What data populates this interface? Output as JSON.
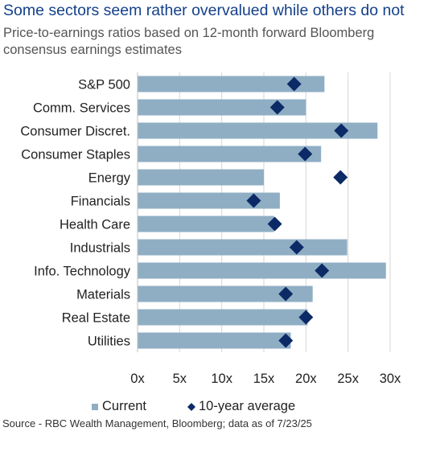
{
  "title": "Some sectors seem rather overvalued while others do not",
  "subtitle": "Price-to-earnings ratios based on 12-month forward Bloomberg consensus earnings estimates",
  "source": "Source - RBC Wealth Management, Bloomberg; data as of 7/23/25",
  "colors": {
    "bar": "#8faec4",
    "marker": "#0c2a66",
    "grid": "#d6d6d6",
    "title": "#14408a"
  },
  "chart_data": {
    "type": "bar",
    "orientation": "horizontal",
    "categories": [
      "S&P 500",
      "Comm. Services",
      "Consumer Discret.",
      "Consumer Staples",
      "Energy",
      "Financials",
      "Health Care",
      "Industrials",
      "Info. Technology",
      "Materials",
      "Real Estate",
      "Utilities"
    ],
    "series": [
      {
        "name": "Current",
        "type": "bar",
        "values": [
          22.2,
          20.0,
          28.5,
          21.8,
          15.0,
          16.9,
          16.2,
          24.9,
          29.5,
          20.8,
          20.2,
          18.2
        ]
      },
      {
        "name": "10-year average",
        "type": "marker",
        "values": [
          18.6,
          16.6,
          24.2,
          19.9,
          24.1,
          13.8,
          16.3,
          18.9,
          21.9,
          17.6,
          20.0,
          17.6
        ]
      }
    ],
    "xticks": [
      "0x",
      "5x",
      "10x",
      "15x",
      "20x",
      "25x",
      "30x"
    ],
    "xlim": [
      0,
      30
    ],
    "grid": true,
    "legend": {
      "position": "bottom",
      "entries": [
        "Current",
        "10-year average"
      ]
    }
  }
}
